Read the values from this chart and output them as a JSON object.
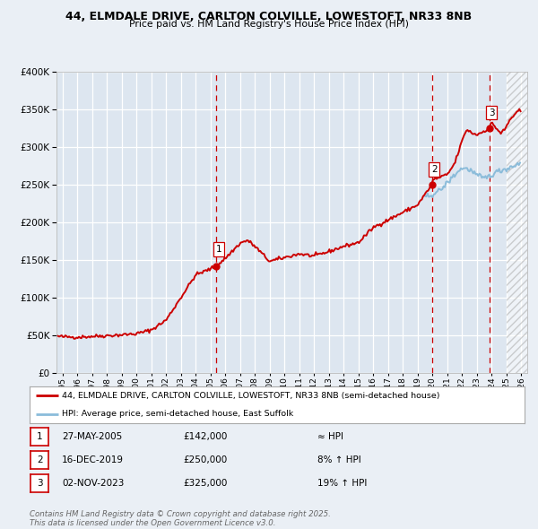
{
  "title1": "44, ELMDALE DRIVE, CARLTON COLVILLE, LOWESTOFT, NR33 8NB",
  "title2": "Price paid vs. HM Land Registry's House Price Index (HPI)",
  "bg_color": "#eaeff5",
  "plot_bg_color": "#dde6f0",
  "legend_line1": "44, ELMDALE DRIVE, CARLTON COLVILLE, LOWESTOFT, NR33 8NB (semi-detached house)",
  "legend_line2": "HPI: Average price, semi-detached house, East Suffolk",
  "footer": "Contains HM Land Registry data © Crown copyright and database right 2025.\nThis data is licensed under the Open Government Licence v3.0.",
  "sale_markers": [
    {
      "id": 1,
      "date_num": 2005.41,
      "price": 142000,
      "label": "1",
      "date_str": "27-MAY-2005",
      "price_str": "£142,000",
      "hpi_rel": "≈ HPI"
    },
    {
      "id": 2,
      "date_num": 2019.96,
      "price": 250000,
      "label": "2",
      "date_str": "16-DEC-2019",
      "price_str": "£250,000",
      "hpi_rel": "8% ↑ HPI"
    },
    {
      "id": 3,
      "date_num": 2023.84,
      "price": 325000,
      "label": "3",
      "date_str": "02-NOV-2023",
      "price_str": "£325,000",
      "hpi_rel": "19% ↑ HPI"
    }
  ],
  "vline_color": "#cc0000",
  "sale_dot_color": "#cc0000",
  "hpi_line_color": "#8bbcda",
  "price_line_color": "#cc0000",
  "ylim": [
    0,
    400000
  ],
  "xlim_start": 1994.6,
  "xlim_end": 2026.4,
  "hpi_start_year": 2019.5
}
